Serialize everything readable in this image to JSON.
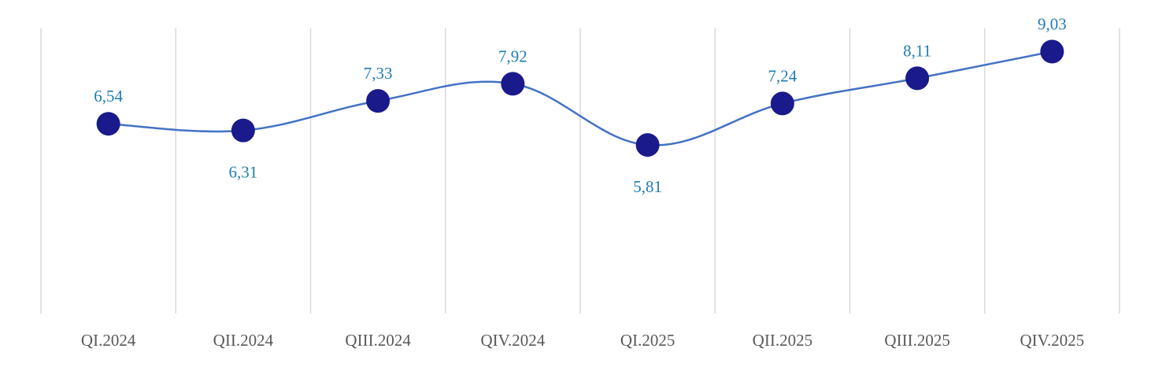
{
  "chart_data": {
    "type": "line",
    "title": "",
    "xlabel": "",
    "ylabel": "",
    "categories": [
      "QI.2024",
      "QII.2024",
      "QIII.2024",
      "QIV.2024",
      "QI.2025",
      "QII.2025",
      "QIII.2025",
      "QIV.2025"
    ],
    "series": [
      {
        "values": [
          6.54,
          6.31,
          7.33,
          7.92,
          5.81,
          7.24,
          8.11,
          9.03
        ],
        "labels": [
          "6,54",
          "6,31",
          "7,33",
          "7,92",
          "5,81",
          "7,24",
          "8,11",
          "9,03"
        ],
        "label_positions": [
          "above",
          "below",
          "above",
          "above",
          "below",
          "above",
          "above",
          "above"
        ],
        "line_color": "#4472c4",
        "marker_color": "#1a1a8c"
      }
    ],
    "ylim": [
      0,
      10
    ],
    "grid": "vertical",
    "legend": "none",
    "smooth": true
  },
  "colors": {
    "gridline": "#d9d9d9",
    "tick_text": "#595959",
    "data_label": "#1f7bb5"
  }
}
